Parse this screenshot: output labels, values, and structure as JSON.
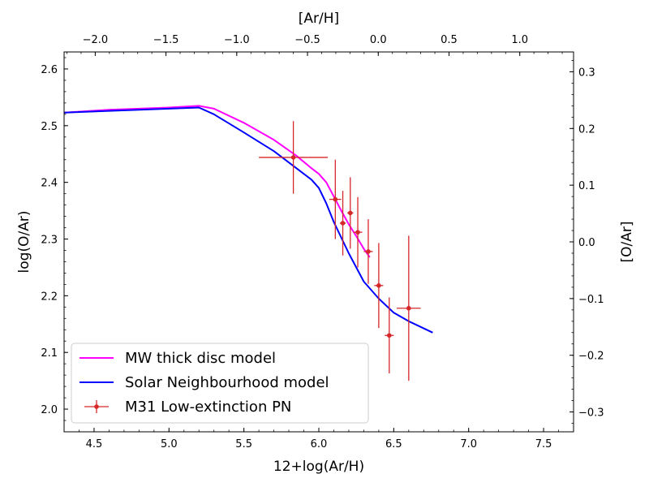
{
  "chart_data": {
    "type": "line",
    "xlabel": "12+log(Ar/H)",
    "ylabel": "log(O/Ar)",
    "top_xlabel": "[Ar/H]",
    "right_ylabel": "[O/Ar]",
    "xlim": [
      4.3,
      7.7
    ],
    "ylim": [
      1.96,
      2.63
    ],
    "top_xlim": [
      -2.22,
      1.38
    ],
    "right_ylim": [
      -0.335,
      0.335
    ],
    "grid": false,
    "legend_position": "lower-left",
    "x_ticks": [
      4.5,
      5.0,
      5.5,
      6.0,
      6.5,
      7.0,
      7.5
    ],
    "x_tick_labels": [
      "4.5",
      "5.0",
      "5.5",
      "6.0",
      "6.5",
      "7.0",
      "7.5"
    ],
    "y_ticks": [
      2.0,
      2.1,
      2.2,
      2.3,
      2.4,
      2.5,
      2.6
    ],
    "y_tick_labels": [
      "2.0",
      "2.1",
      "2.2",
      "2.3",
      "2.4",
      "2.5",
      "2.6"
    ],
    "top_ticks": [
      -2.0,
      -1.5,
      -1.0,
      -0.5,
      0.0,
      0.5,
      1.0
    ],
    "top_tick_labels": [
      "−2.0",
      "−1.5",
      "−1.0",
      "−0.5",
      "0.0",
      "0.5",
      "1.0"
    ],
    "right_ticks": [
      -0.3,
      -0.2,
      -0.1,
      0.0,
      0.1,
      0.2,
      0.3
    ],
    "right_tick_labels": [
      "−0.3",
      "−0.2",
      "−0.1",
      "0.0",
      "0.1",
      "0.2",
      "0.3"
    ],
    "series": [
      {
        "name": "MW thick disc model",
        "color": "#ff00ff",
        "kind": "line",
        "x": [
          4.3,
          4.6,
          5.0,
          5.2,
          5.3,
          5.5,
          5.7,
          5.85,
          5.95,
          6.0,
          6.05,
          6.1,
          6.15,
          6.2,
          6.25,
          6.3,
          6.34
        ],
        "y": [
          2.523,
          2.528,
          2.532,
          2.535,
          2.53,
          2.505,
          2.475,
          2.447,
          2.425,
          2.415,
          2.4,
          2.375,
          2.35,
          2.326,
          2.305,
          2.283,
          2.268
        ]
      },
      {
        "name": "Solar Neighbourhood model",
        "color": "#0000ff",
        "kind": "line",
        "x": [
          4.3,
          4.6,
          5.0,
          5.2,
          5.3,
          5.5,
          5.7,
          5.85,
          5.95,
          6.0,
          6.05,
          6.1,
          6.2,
          6.3,
          6.4,
          6.5,
          6.6,
          6.76
        ],
        "y": [
          2.523,
          2.526,
          2.53,
          2.532,
          2.52,
          2.488,
          2.455,
          2.425,
          2.405,
          2.39,
          2.363,
          2.33,
          2.275,
          2.225,
          2.195,
          2.17,
          2.155,
          2.135
        ]
      },
      {
        "name": "M31 Low-extinction PN",
        "color": "#d62728",
        "kind": "errorbar",
        "points": [
          {
            "x": 5.83,
            "y": 2.444,
            "xerr": 0.23,
            "yerr": 0.064
          },
          {
            "x": 6.11,
            "y": 2.37,
            "xerr": 0.04,
            "yerr": 0.07
          },
          {
            "x": 6.16,
            "y": 2.328,
            "xerr": 0.02,
            "yerr": 0.057
          },
          {
            "x": 6.21,
            "y": 2.346,
            "xerr": 0.02,
            "yerr": 0.063
          },
          {
            "x": 6.26,
            "y": 2.312,
            "xerr": 0.03,
            "yerr": 0.062
          },
          {
            "x": 6.33,
            "y": 2.278,
            "xerr": 0.03,
            "yerr": 0.057
          },
          {
            "x": 6.4,
            "y": 2.218,
            "xerr": 0.03,
            "yerr": 0.075
          },
          {
            "x": 6.47,
            "y": 2.13,
            "xerr": 0.03,
            "yerr": 0.067
          },
          {
            "x": 6.6,
            "y": 2.178,
            "xerr": 0.08,
            "yerr": 0.128
          }
        ]
      }
    ]
  }
}
